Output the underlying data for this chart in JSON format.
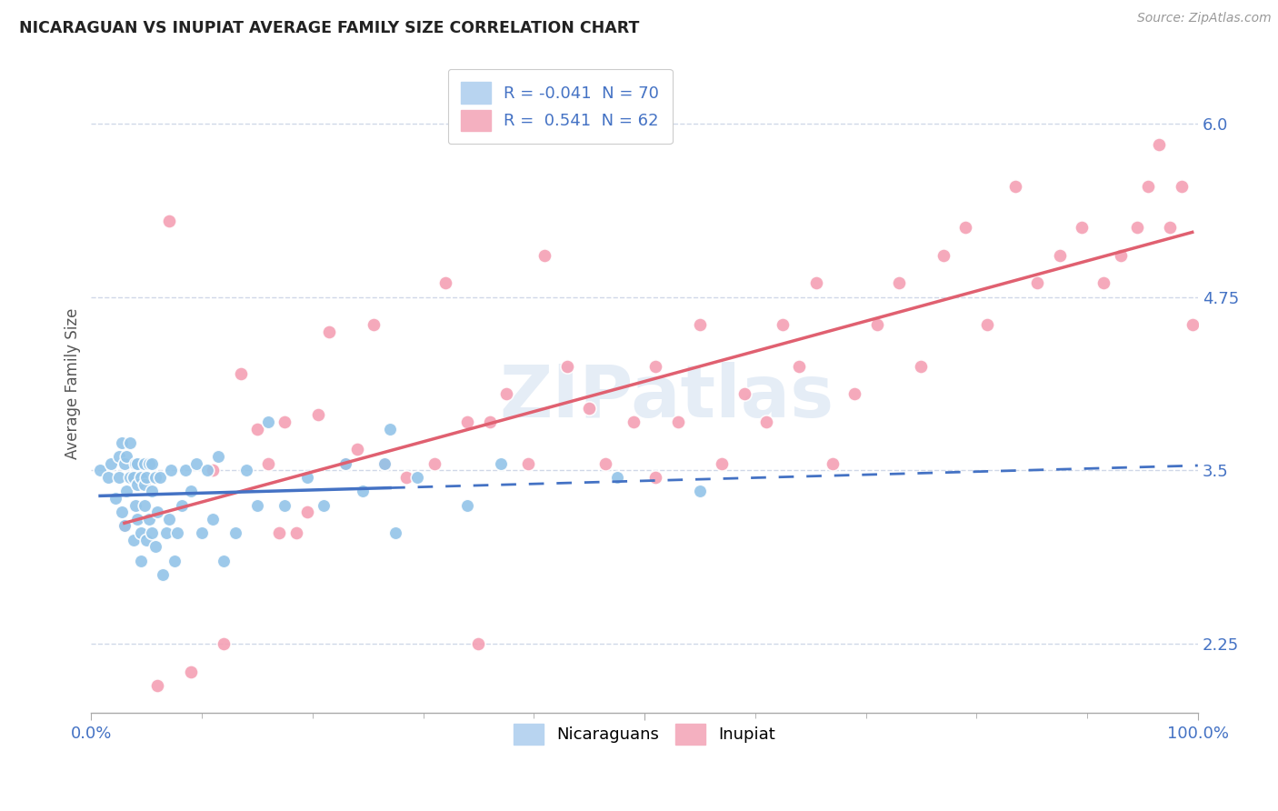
{
  "title": "NICARAGUAN VS INUPIAT AVERAGE FAMILY SIZE CORRELATION CHART",
  "source": "Source: ZipAtlas.com",
  "ylabel": "Average Family Size",
  "xlim": [
    0.0,
    1.0
  ],
  "ylim": [
    1.75,
    6.5
  ],
  "yticks": [
    2.25,
    3.5,
    4.75,
    6.0
  ],
  "xtick_positions": [
    0.0,
    0.5,
    1.0
  ],
  "xtick_labels": [
    "0.0%",
    "",
    "100.0%"
  ],
  "nicaraguan_color": "#93c4e8",
  "inupiat_color": "#f4a0b4",
  "background_color": "#ffffff",
  "grid_color": "#d0d8e8",
  "watermark": "ZIPatlas",
  "tick_color": "#4472c4",
  "line_color_nic": "#4472c4",
  "line_color_inp": "#e06070",
  "nicaraguan_x": [
    0.008,
    0.015,
    0.018,
    0.022,
    0.025,
    0.025,
    0.028,
    0.028,
    0.03,
    0.03,
    0.032,
    0.032,
    0.035,
    0.035,
    0.038,
    0.038,
    0.04,
    0.04,
    0.042,
    0.042,
    0.042,
    0.045,
    0.045,
    0.045,
    0.048,
    0.048,
    0.048,
    0.05,
    0.05,
    0.052,
    0.052,
    0.055,
    0.055,
    0.055,
    0.058,
    0.058,
    0.06,
    0.062,
    0.065,
    0.068,
    0.07,
    0.072,
    0.075,
    0.078,
    0.082,
    0.085,
    0.09,
    0.095,
    0.1,
    0.105,
    0.11,
    0.115,
    0.12,
    0.13,
    0.14,
    0.15,
    0.16,
    0.175,
    0.195,
    0.21,
    0.23,
    0.245,
    0.265,
    0.275,
    0.295,
    0.34,
    0.37,
    0.475,
    0.55,
    0.27
  ],
  "nicaraguan_y": [
    3.5,
    3.45,
    3.55,
    3.3,
    3.45,
    3.6,
    3.2,
    3.7,
    3.1,
    3.55,
    3.35,
    3.6,
    3.45,
    3.7,
    3.0,
    3.45,
    3.25,
    3.55,
    3.15,
    3.4,
    3.55,
    2.85,
    3.05,
    3.45,
    3.25,
    3.4,
    3.55,
    3.0,
    3.45,
    3.15,
    3.55,
    3.05,
    3.35,
    3.55,
    2.95,
    3.45,
    3.2,
    3.45,
    2.75,
    3.05,
    3.15,
    3.5,
    2.85,
    3.05,
    3.25,
    3.5,
    3.35,
    3.55,
    3.05,
    3.5,
    3.15,
    3.6,
    2.85,
    3.05,
    3.5,
    3.25,
    3.85,
    3.25,
    3.45,
    3.25,
    3.55,
    3.35,
    3.55,
    3.05,
    3.45,
    3.25,
    3.55,
    3.45,
    3.35,
    3.8
  ],
  "inupiat_x": [
    0.03,
    0.06,
    0.07,
    0.09,
    0.11,
    0.12,
    0.135,
    0.15,
    0.16,
    0.17,
    0.175,
    0.185,
    0.195,
    0.205,
    0.215,
    0.23,
    0.24,
    0.255,
    0.265,
    0.285,
    0.31,
    0.32,
    0.34,
    0.35,
    0.36,
    0.375,
    0.395,
    0.41,
    0.43,
    0.45,
    0.465,
    0.49,
    0.51,
    0.53,
    0.55,
    0.57,
    0.59,
    0.61,
    0.625,
    0.64,
    0.655,
    0.67,
    0.69,
    0.71,
    0.73,
    0.75,
    0.77,
    0.79,
    0.81,
    0.835,
    0.855,
    0.875,
    0.895,
    0.915,
    0.93,
    0.945,
    0.955,
    0.965,
    0.975,
    0.985,
    0.995,
    0.51
  ],
  "inupiat_y": [
    3.1,
    1.95,
    5.3,
    2.05,
    3.5,
    2.25,
    4.2,
    3.8,
    3.55,
    3.05,
    3.85,
    3.05,
    3.2,
    3.9,
    4.5,
    3.55,
    3.65,
    4.55,
    3.55,
    3.45,
    3.55,
    4.85,
    3.85,
    2.25,
    3.85,
    4.05,
    3.55,
    5.05,
    4.25,
    3.95,
    3.55,
    3.85,
    4.25,
    3.85,
    4.55,
    3.55,
    4.05,
    3.85,
    4.55,
    4.25,
    4.85,
    3.55,
    4.05,
    4.55,
    4.85,
    4.25,
    5.05,
    5.25,
    4.55,
    5.55,
    4.85,
    5.05,
    5.25,
    4.85,
    5.05,
    5.25,
    5.55,
    5.85,
    5.25,
    5.55,
    4.55,
    3.45
  ]
}
